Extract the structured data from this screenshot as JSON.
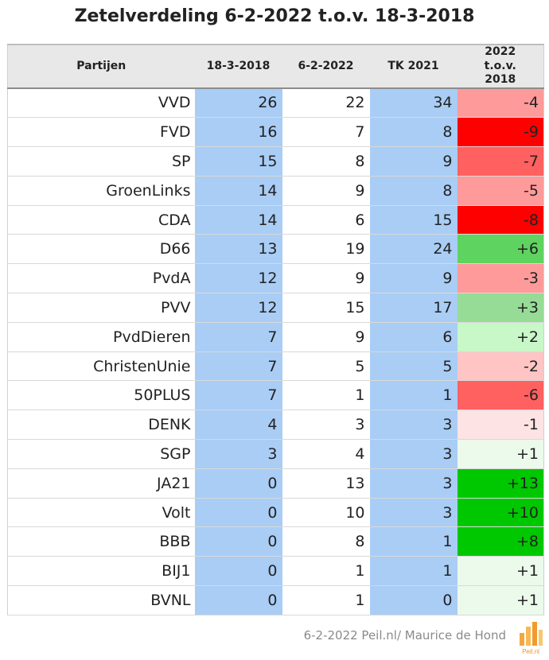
{
  "title": "Zetelverdeling 6-2-2022 t.o.v. 18-3-2018",
  "source": "6-2-2022 Peil.nl/ Maurice de Hond",
  "logo_text": "Peil.nl",
  "colors": {
    "blue_cell": "#a9cdf5",
    "neg_strong": "#ff0000",
    "neg_high": "#ff6060",
    "neg_mid": "#ff9a9a",
    "neg_low": "#ffc4c4",
    "neg_min": "#fde3e3",
    "pos_strong": "#00c800",
    "pos_high": "#5fd35f",
    "pos_mid": "#96dc96",
    "pos_low": "#c8f7c8",
    "pos_min": "#ebfaeb"
  },
  "chart_data": {
    "type": "table",
    "columns": [
      "Partijen",
      "18-3-2018",
      "6-2-2022",
      "TK 2021",
      "2022 t.o.v. 2018"
    ],
    "rows": [
      {
        "party": "VVD",
        "v2018": "26",
        "v2022": "22",
        "tk2021": "34",
        "diff": "-4"
      },
      {
        "party": "FVD",
        "v2018": "16",
        "v2022": "7",
        "tk2021": "8",
        "diff": "-9"
      },
      {
        "party": "SP",
        "v2018": "15",
        "v2022": "8",
        "tk2021": "9",
        "diff": "-7"
      },
      {
        "party": "GroenLinks",
        "v2018": "14",
        "v2022": "9",
        "tk2021": "8",
        "diff": "-5"
      },
      {
        "party": "CDA",
        "v2018": "14",
        "v2022": "6",
        "tk2021": "15",
        "diff": "-8"
      },
      {
        "party": "D66",
        "v2018": "13",
        "v2022": "19",
        "tk2021": "24",
        "diff": "+6"
      },
      {
        "party": "PvdA",
        "v2018": "12",
        "v2022": "9",
        "tk2021": "9",
        "diff": "-3"
      },
      {
        "party": "PVV",
        "v2018": "12",
        "v2022": "15",
        "tk2021": "17",
        "diff": "+3"
      },
      {
        "party": "PvdDieren",
        "v2018": "7",
        "v2022": "9",
        "tk2021": "6",
        "diff": "+2"
      },
      {
        "party": "ChristenUnie",
        "v2018": "7",
        "v2022": "5",
        "tk2021": "5",
        "diff": "-2"
      },
      {
        "party": "50PLUS",
        "v2018": "7",
        "v2022": "1",
        "tk2021": "1",
        "diff": "-6"
      },
      {
        "party": "DENK",
        "v2018": "4",
        "v2022": "3",
        "tk2021": "3",
        "diff": "-1"
      },
      {
        "party": "SGP",
        "v2018": "3",
        "v2022": "4",
        "tk2021": "3",
        "diff": "+1"
      },
      {
        "party": "JA21",
        "v2018": "0",
        "v2022": "13",
        "tk2021": "3",
        "diff": "+13"
      },
      {
        "party": "Volt",
        "v2018": "0",
        "v2022": "10",
        "tk2021": "3",
        "diff": "+10"
      },
      {
        "party": "BBB",
        "v2018": "0",
        "v2022": "8",
        "tk2021": "1",
        "diff": "+8"
      },
      {
        "party": "BIJ1",
        "v2018": "0",
        "v2022": "1",
        "tk2021": "1",
        "diff": "+1"
      },
      {
        "party": "BVNL",
        "v2018": "0",
        "v2022": "1",
        "tk2021": "0",
        "diff": "+1"
      }
    ]
  }
}
